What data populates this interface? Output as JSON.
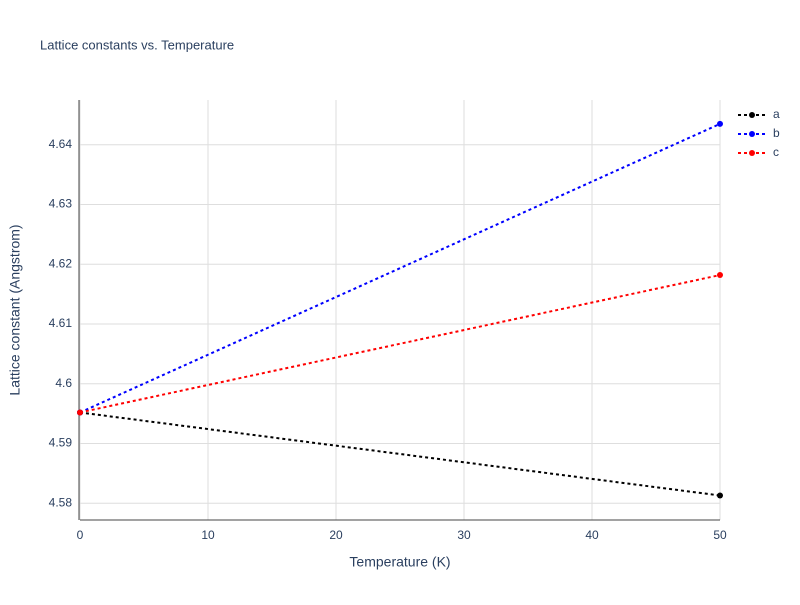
{
  "chart_data": {
    "type": "line",
    "title": "Lattice constants vs. Temperature",
    "x_label": "Temperature (K)",
    "y_label": "Lattice constant (Angstrom)",
    "x": [
      0,
      50
    ],
    "series": [
      {
        "name": "a",
        "color": "#000000",
        "values": [
          4.5952,
          4.5813
        ]
      },
      {
        "name": "b",
        "color": "#0000ff",
        "values": [
          4.5952,
          4.6435
        ]
      },
      {
        "name": "c",
        "color": "#ff0000",
        "values": [
          4.5952,
          4.6182
        ]
      }
    ],
    "xlim": [
      0,
      50
    ],
    "xticks": [
      0,
      10,
      20,
      30,
      40,
      50
    ],
    "ylim": [
      4.5772,
      4.6475
    ],
    "yticks": [
      4.58,
      4.59,
      4.6,
      4.61,
      4.62,
      4.63,
      4.64
    ],
    "grid": true,
    "legend": "top-right"
  }
}
